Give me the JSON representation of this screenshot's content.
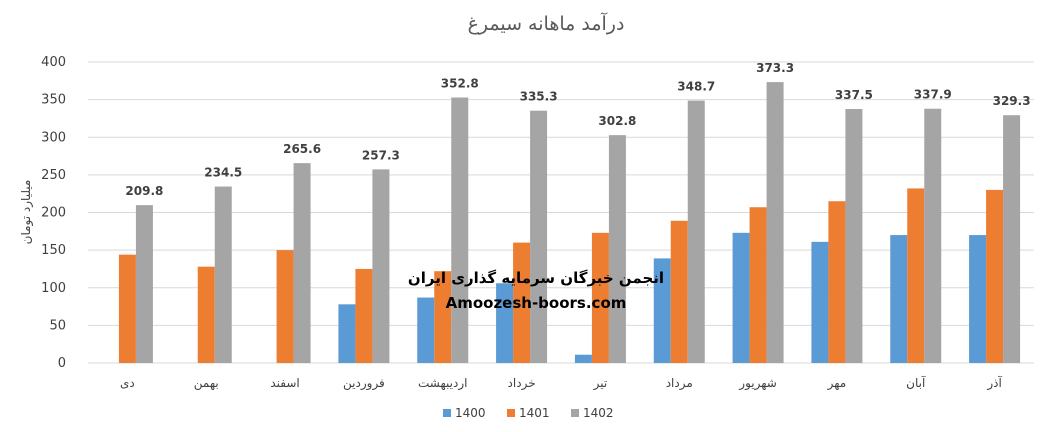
{
  "colors": {
    "s1400": "#5b9bd5",
    "s1401": "#ed7d31",
    "s1402": "#a5a5a5",
    "grid": "#d9d9d9"
  },
  "watermark": {
    "line1": "انجمن خبرگان سرمایه گذاری ایران",
    "line2": "Amoozesh-boors.com"
  },
  "chart_data": {
    "type": "bar",
    "title": "درآمد ماهانه سیمرغ",
    "xlabel": "",
    "ylabel": "میلیارد تومان",
    "ylim": [
      0,
      400
    ],
    "yticks": [
      0,
      50,
      100,
      150,
      200,
      250,
      300,
      350,
      400
    ],
    "grid": true,
    "legend_position": "bottom",
    "categories": [
      "دی",
      "بهمن",
      "اسفند",
      "فروردین",
      "اردیبهشت",
      "خرداد",
      "تیر",
      "مرداد",
      "شهریور",
      "مهر",
      "آبان",
      "آذر"
    ],
    "series": [
      {
        "name": "1400",
        "color": "#5b9bd5",
        "values": [
          null,
          null,
          null,
          78,
          87,
          106,
          11,
          139,
          173,
          161,
          170,
          170
        ]
      },
      {
        "name": "1401",
        "color": "#ed7d31",
        "values": [
          144,
          128,
          150,
          125,
          122,
          160,
          173,
          189,
          207,
          215,
          232,
          230
        ]
      },
      {
        "name": "1402",
        "color": "#a5a5a5",
        "values": [
          209.8,
          234.5,
          265.6,
          257.3,
          352.8,
          335.3,
          302.8,
          348.7,
          373.3,
          337.5,
          337.9,
          329.3
        ]
      }
    ],
    "data_labels": {
      "series": "1402",
      "labels": [
        "209.8",
        "234.5",
        "265.6",
        "257.3",
        "352.8",
        "335.3",
        "302.8",
        "348.7",
        "373.3",
        "337.5",
        "337.9",
        "329.3"
      ]
    }
  }
}
